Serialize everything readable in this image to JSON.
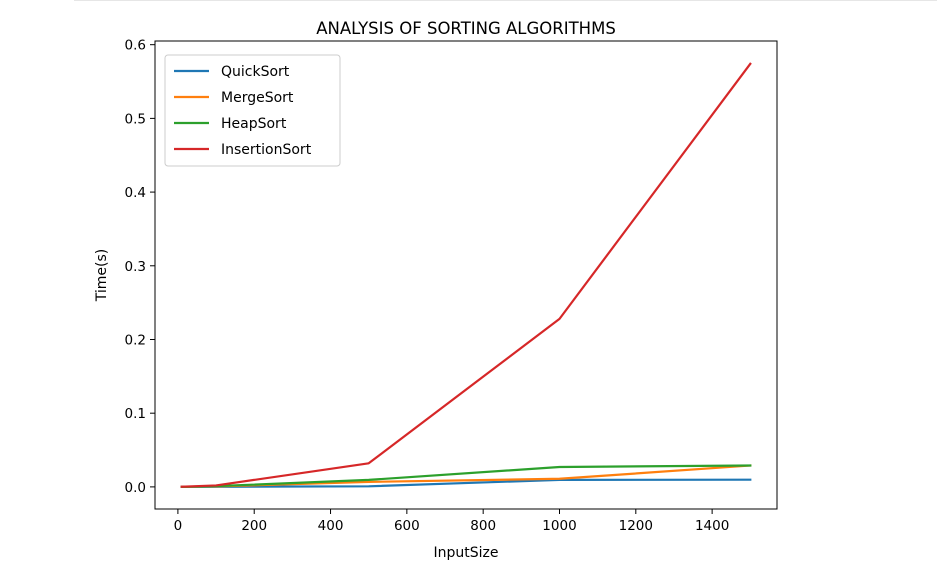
{
  "chart_data": {
    "type": "line",
    "title": "ANALYSIS OF SORTING ALGORITHMS",
    "xlabel": "InputSize",
    "ylabel": "Time(s)",
    "xlim": [
      -60,
      1570
    ],
    "ylim": [
      -0.03,
      0.605
    ],
    "xticks": [
      0,
      200,
      400,
      600,
      800,
      1000,
      1200,
      1400
    ],
    "yticks": [
      0.0,
      0.1,
      0.2,
      0.3,
      0.4,
      0.5,
      0.6
    ],
    "xtick_labels": [
      "0",
      "200",
      "400",
      "600",
      "800",
      "1000",
      "1200",
      "1400"
    ],
    "ytick_labels": [
      "0.0",
      "0.1",
      "0.2",
      "0.3",
      "0.4",
      "0.5",
      "0.6"
    ],
    "grid": false,
    "legend_position": "upper-left",
    "x": [
      10,
      100,
      500,
      1000,
      1500
    ],
    "series": [
      {
        "name": "QuickSort",
        "color": "#1f77b4",
        "values": [
          0.0,
          0.0002,
          0.0008,
          0.0095,
          0.0098
        ]
      },
      {
        "name": "MergeSort",
        "color": "#ff7f0e",
        "values": [
          0.0001,
          0.0006,
          0.0068,
          0.011,
          0.029
        ]
      },
      {
        "name": "HeapSort",
        "color": "#2ca02c",
        "values": [
          0.0001,
          0.001,
          0.0095,
          0.027,
          0.029
        ]
      },
      {
        "name": "InsertionSort",
        "color": "#d62728",
        "values": [
          0.0002,
          0.002,
          0.032,
          0.228,
          0.574
        ]
      }
    ]
  }
}
